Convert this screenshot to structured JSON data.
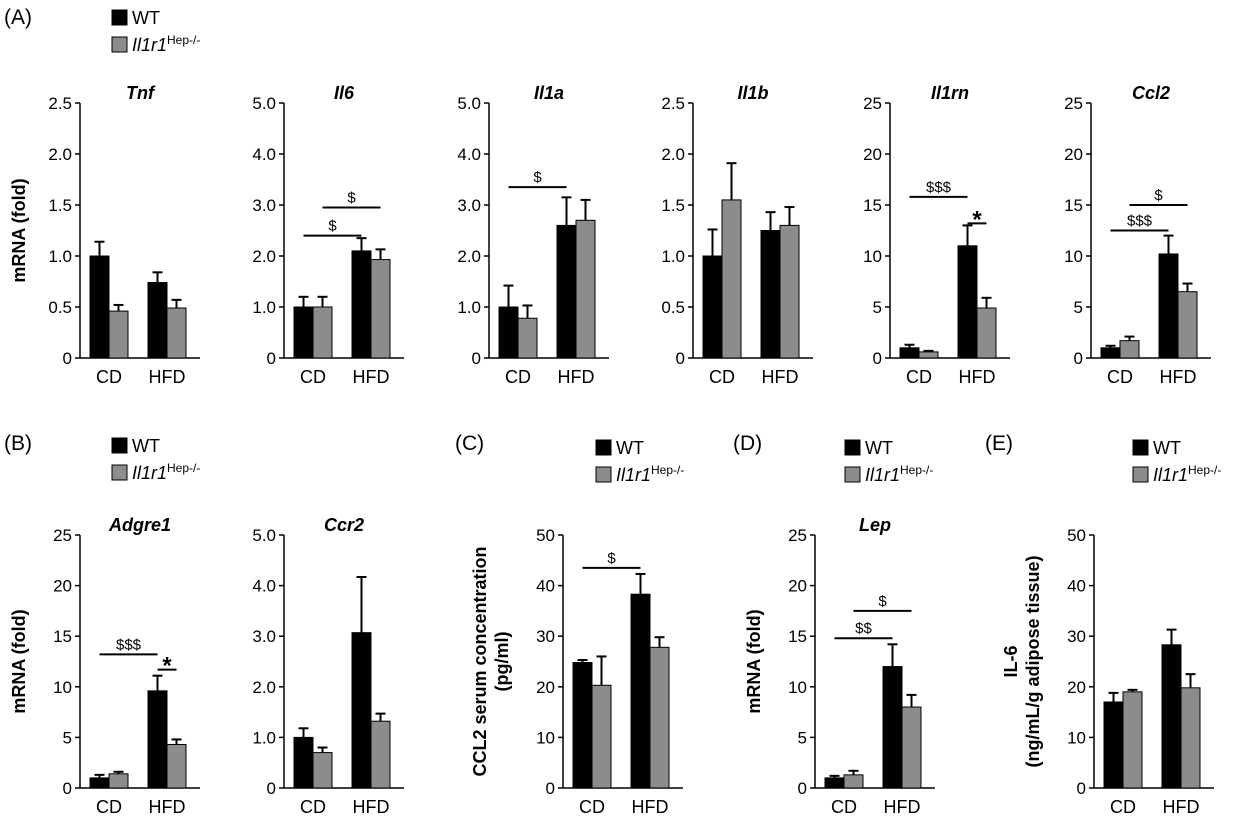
{
  "legend": {
    "wt_label": "WT",
    "ko_label": "Il1r1",
    "ko_sup": "Hep-/-",
    "wt_color": "#000000",
    "ko_color": "#8c8c8c"
  },
  "panel_letters": [
    "(A)",
    "(B)",
    "(C)",
    "(D)",
    "(E)"
  ],
  "chart_data": [
    {
      "type": "bar",
      "panel": "A",
      "title": "Tnf",
      "ylabel": "mRNA (fold)",
      "ylim": [
        0,
        2.5
      ],
      "yticks": [
        "0",
        "0.5",
        "1.0",
        "1.5",
        "2.0",
        "2.5"
      ],
      "categories": [
        "CD",
        "HFD"
      ],
      "series": [
        {
          "name": "WT",
          "values": [
            1.0,
            0.74
          ],
          "errors": [
            0.14,
            0.1
          ]
        },
        {
          "name": "Il1r1 Hep-/-",
          "values": [
            0.46,
            0.49
          ],
          "errors": [
            0.06,
            0.08
          ]
        }
      ],
      "annotations": []
    },
    {
      "type": "bar",
      "panel": "A",
      "title": "Il6",
      "ylabel": "",
      "ylim": [
        0,
        5.0
      ],
      "yticks": [
        "0",
        "1.0",
        "2.0",
        "3.0",
        "4.0",
        "5.0"
      ],
      "categories": [
        "CD",
        "HFD"
      ],
      "series": [
        {
          "name": "WT",
          "values": [
            1.0,
            2.1
          ],
          "errors": [
            0.2,
            0.25
          ]
        },
        {
          "name": "Il1r1 Hep-/-",
          "values": [
            1.0,
            1.93
          ],
          "errors": [
            0.2,
            0.2
          ]
        }
      ],
      "annotations": [
        {
          "text": "$",
          "y": 2.4,
          "from": [
            0,
            0
          ],
          "to": [
            1,
            0
          ]
        },
        {
          "text": "$",
          "y": 2.95,
          "from": [
            0,
            1
          ],
          "to": [
            1,
            1
          ]
        }
      ]
    },
    {
      "type": "bar",
      "panel": "A",
      "title": "Il1a",
      "ylabel": "",
      "ylim": [
        0,
        5.0
      ],
      "yticks": [
        "0",
        "1.0",
        "2.0",
        "3.0",
        "4.0",
        "5.0"
      ],
      "categories": [
        "CD",
        "HFD"
      ],
      "series": [
        {
          "name": "WT",
          "values": [
            1.0,
            2.6
          ],
          "errors": [
            0.42,
            0.55
          ]
        },
        {
          "name": "Il1r1 Hep-/-",
          "values": [
            0.78,
            2.7
          ],
          "errors": [
            0.25,
            0.4
          ]
        }
      ],
      "annotations": [
        {
          "text": "$",
          "y": 3.35,
          "from": [
            0,
            0
          ],
          "to": [
            1,
            0
          ]
        }
      ]
    },
    {
      "type": "bar",
      "panel": "A",
      "title": "Il1b",
      "ylabel": "",
      "ylim": [
        0,
        2.5
      ],
      "yticks": [
        "0",
        "0.5",
        "1.0",
        "1.5",
        "2.0",
        "2.5"
      ],
      "categories": [
        "CD",
        "HFD"
      ],
      "series": [
        {
          "name": "WT",
          "values": [
            1.0,
            1.25
          ],
          "errors": [
            0.26,
            0.18
          ]
        },
        {
          "name": "Il1r1 Hep-/-",
          "values": [
            1.55,
            1.3
          ],
          "errors": [
            0.36,
            0.18
          ]
        }
      ],
      "annotations": []
    },
    {
      "type": "bar",
      "panel": "A",
      "title": "Il1rn",
      "ylabel": "",
      "ylim": [
        0,
        25
      ],
      "yticks": [
        "0",
        "5",
        "10",
        "15",
        "20",
        "25"
      ],
      "categories": [
        "CD",
        "HFD"
      ],
      "series": [
        {
          "name": "WT",
          "values": [
            1.0,
            11.0
          ],
          "errors": [
            0.3,
            2.0
          ]
        },
        {
          "name": "Il1r1 Hep-/-",
          "values": [
            0.6,
            4.9
          ],
          "errors": [
            0.1,
            1.0
          ]
        }
      ],
      "annotations": [
        {
          "text": "$$$",
          "y": 15.8,
          "from": [
            0,
            0
          ],
          "to": [
            1,
            0
          ]
        },
        {
          "text": "*",
          "y": 13.2,
          "from": [
            1,
            0
          ],
          "to": [
            1,
            1
          ]
        }
      ]
    },
    {
      "type": "bar",
      "panel": "A",
      "title": "Ccl2",
      "ylabel": "",
      "ylim": [
        0,
        25
      ],
      "yticks": [
        "0",
        "5",
        "10",
        "15",
        "20",
        "25"
      ],
      "categories": [
        "CD",
        "HFD"
      ],
      "series": [
        {
          "name": "WT",
          "values": [
            1.0,
            10.2
          ],
          "errors": [
            0.2,
            1.8
          ]
        },
        {
          "name": "Il1r1 Hep-/-",
          "values": [
            1.7,
            6.5
          ],
          "errors": [
            0.4,
            0.8
          ]
        }
      ],
      "annotations": [
        {
          "text": "$$$",
          "y": 12.5,
          "from": [
            0,
            0
          ],
          "to": [
            1,
            0
          ]
        },
        {
          "text": "$",
          "y": 15.0,
          "from": [
            0,
            1
          ],
          "to": [
            1,
            1
          ]
        }
      ]
    },
    {
      "type": "bar",
      "panel": "B",
      "title": "Adgre1",
      "ylabel": "mRNA (fold)",
      "ylim": [
        0,
        25
      ],
      "yticks": [
        "0",
        "5",
        "10",
        "15",
        "20",
        "25"
      ],
      "categories": [
        "CD",
        "HFD"
      ],
      "series": [
        {
          "name": "WT",
          "values": [
            1.0,
            9.6
          ],
          "errors": [
            0.3,
            1.5
          ]
        },
        {
          "name": "Il1r1 Hep-/-",
          "values": [
            1.4,
            4.3
          ],
          "errors": [
            0.2,
            0.5
          ]
        }
      ],
      "annotations": [
        {
          "text": "$$$",
          "y": 13.2,
          "from": [
            0,
            0
          ],
          "to": [
            1,
            0
          ]
        },
        {
          "text": "*",
          "y": 11.7,
          "from": [
            1,
            0
          ],
          "to": [
            1,
            1
          ]
        }
      ]
    },
    {
      "type": "bar",
      "panel": "B",
      "title": "Ccr2",
      "ylabel": "",
      "ylim": [
        0,
        5.0
      ],
      "yticks": [
        "0",
        "1.0",
        "2.0",
        "3.0",
        "4.0",
        "5.0"
      ],
      "categories": [
        "CD",
        "HFD"
      ],
      "series": [
        {
          "name": "WT",
          "values": [
            1.0,
            3.07
          ],
          "errors": [
            0.18,
            1.1
          ]
        },
        {
          "name": "Il1r1 Hep-/-",
          "values": [
            0.7,
            1.32
          ],
          "errors": [
            0.1,
            0.15
          ]
        }
      ],
      "annotations": []
    },
    {
      "type": "bar",
      "panel": "C",
      "title": "",
      "ylabel": [
        "CCL2 serum concentration",
        "(pg/ml)"
      ],
      "ylim": [
        0,
        50
      ],
      "yticks": [
        "0",
        "10",
        "20",
        "30",
        "40",
        "50"
      ],
      "categories": [
        "CD",
        "HFD"
      ],
      "series": [
        {
          "name": "WT",
          "values": [
            24.8,
            38.3
          ],
          "errors": [
            0.5,
            4.0
          ]
        },
        {
          "name": "Il1r1 Hep-/-",
          "values": [
            20.3,
            27.8
          ],
          "errors": [
            5.7,
            2.0
          ]
        }
      ],
      "annotations": [
        {
          "text": "$",
          "y": 43.5,
          "from": [
            0,
            0
          ],
          "to": [
            1,
            0
          ]
        }
      ]
    },
    {
      "type": "bar",
      "panel": "D",
      "title": "Lep",
      "ylabel": "mRNA (fold)",
      "ylim": [
        0,
        25
      ],
      "yticks": [
        "0",
        "5",
        "10",
        "15",
        "20",
        "25"
      ],
      "categories": [
        "CD",
        "HFD"
      ],
      "series": [
        {
          "name": "WT",
          "values": [
            1.0,
            12.0
          ],
          "errors": [
            0.2,
            2.2
          ]
        },
        {
          "name": "Il1r1 Hep-/-",
          "values": [
            1.3,
            8.0
          ],
          "errors": [
            0.4,
            1.2
          ]
        }
      ],
      "annotations": [
        {
          "text": "$$",
          "y": 14.8,
          "from": [
            0,
            0
          ],
          "to": [
            1,
            0
          ]
        },
        {
          "text": "$",
          "y": 17.5,
          "from": [
            0,
            1
          ],
          "to": [
            1,
            1
          ]
        }
      ]
    },
    {
      "type": "bar",
      "panel": "E",
      "title": "",
      "ylabel": [
        "IL-6",
        "(ng/mL/g adipose tissue)"
      ],
      "ylim": [
        0,
        50
      ],
      "yticks": [
        "0",
        "10",
        "20",
        "30",
        "40",
        "50"
      ],
      "categories": [
        "CD",
        "HFD"
      ],
      "series": [
        {
          "name": "WT",
          "values": [
            17.0,
            28.3
          ],
          "errors": [
            1.8,
            3.0
          ]
        },
        {
          "name": "Il1r1 Hep-/-",
          "values": [
            19.0,
            19.8
          ],
          "errors": [
            0.4,
            2.7
          ]
        }
      ],
      "annotations": []
    }
  ]
}
